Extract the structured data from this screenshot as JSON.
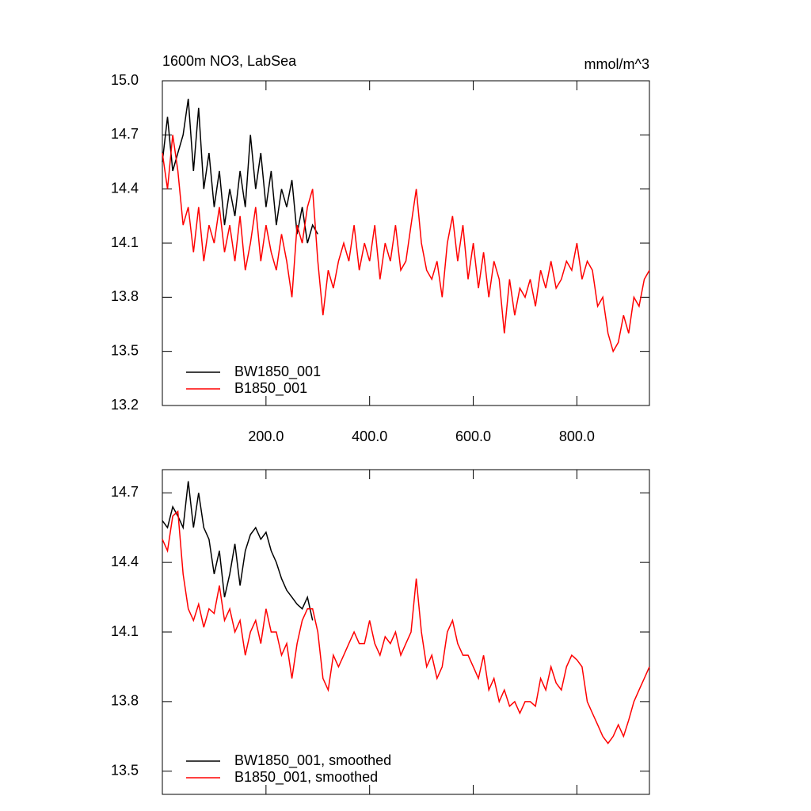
{
  "chart_data": [
    {
      "type": "line",
      "title": "1600m NO3, LabSea",
      "units": "mmol/m^3",
      "xlim": [
        0,
        940
      ],
      "ylim": [
        13.2,
        15.0
      ],
      "xticks": [
        {
          "value": 200,
          "label": "200.0"
        },
        {
          "value": 400,
          "label": "400.0"
        },
        {
          "value": 600,
          "label": "600.0"
        },
        {
          "value": 800,
          "label": "800.0"
        }
      ],
      "yticks": [
        {
          "value": 13.2,
          "label": "13.2"
        },
        13.5,
        13.8,
        14.1,
        14.4,
        14.7,
        {
          "value": 15,
          "label": "15.0"
        }
      ],
      "series": [
        {
          "name": "BW1850_001",
          "color": "#000000",
          "x": [
            0,
            10,
            20,
            30,
            40,
            50,
            60,
            70,
            80,
            90,
            100,
            110,
            120,
            130,
            140,
            150,
            160,
            170,
            180,
            190,
            200,
            210,
            220,
            230,
            240,
            250,
            260,
            270,
            280,
            290,
            300
          ],
          "values": [
            14.55,
            14.8,
            14.5,
            14.6,
            14.7,
            14.9,
            14.5,
            14.85,
            14.4,
            14.6,
            14.3,
            14.5,
            14.2,
            14.4,
            14.25,
            14.5,
            14.3,
            14.7,
            14.4,
            14.6,
            14.3,
            14.5,
            14.2,
            14.4,
            14.3,
            14.45,
            14.15,
            14.3,
            14.1,
            14.2,
            14.15
          ]
        },
        {
          "name": "B1850_001",
          "color": "#ff0000",
          "x": [
            0,
            10,
            20,
            30,
            40,
            50,
            60,
            70,
            80,
            90,
            100,
            110,
            120,
            130,
            140,
            150,
            160,
            170,
            180,
            190,
            200,
            210,
            220,
            230,
            240,
            250,
            260,
            270,
            280,
            290,
            300,
            310,
            320,
            330,
            340,
            350,
            360,
            370,
            380,
            390,
            400,
            410,
            420,
            430,
            440,
            450,
            460,
            470,
            480,
            490,
            500,
            510,
            520,
            530,
            540,
            550,
            560,
            570,
            580,
            590,
            600,
            610,
            620,
            630,
            640,
            650,
            660,
            670,
            680,
            690,
            700,
            710,
            720,
            730,
            740,
            750,
            760,
            770,
            780,
            790,
            800,
            810,
            820,
            830,
            840,
            850,
            860,
            870,
            880,
            890,
            900,
            910,
            920,
            930,
            940
          ],
          "values": [
            14.6,
            14.4,
            14.7,
            14.5,
            14.2,
            14.3,
            14.05,
            14.3,
            14.0,
            14.2,
            14.1,
            14.3,
            14.05,
            14.2,
            14.0,
            14.25,
            13.95,
            14.1,
            14.3,
            14.0,
            14.2,
            14.05,
            13.95,
            14.15,
            14.0,
            13.8,
            14.2,
            14.1,
            14.3,
            14.4,
            14.0,
            13.7,
            13.95,
            13.85,
            14.0,
            14.1,
            14.0,
            14.2,
            13.95,
            14.1,
            14.0,
            14.2,
            13.9,
            14.1,
            14.0,
            14.2,
            13.95,
            14.0,
            14.2,
            14.4,
            14.1,
            13.95,
            13.9,
            14.0,
            13.8,
            14.1,
            14.25,
            14.0,
            14.2,
            13.9,
            14.1,
            13.85,
            14.05,
            13.8,
            14.0,
            13.9,
            13.6,
            13.9,
            13.7,
            13.85,
            13.8,
            13.9,
            13.75,
            13.95,
            13.85,
            14.0,
            13.85,
            13.9,
            14.0,
            13.95,
            14.1,
            13.9,
            14.0,
            13.95,
            13.75,
            13.8,
            13.6,
            13.5,
            13.55,
            13.7,
            13.6,
            13.8,
            13.75,
            13.9,
            13.95
          ]
        }
      ]
    },
    {
      "type": "line",
      "xlim": [
        0,
        940
      ],
      "ylim": [
        13.4,
        14.8
      ],
      "yticks": [
        13.5,
        13.8,
        14.1,
        14.4,
        14.7
      ],
      "series": [
        {
          "name": "BW1850_001, smoothed",
          "color": "#000000",
          "x": [
            0,
            10,
            20,
            30,
            40,
            50,
            60,
            70,
            80,
            90,
            100,
            110,
            120,
            130,
            140,
            150,
            160,
            170,
            180,
            190,
            200,
            210,
            220,
            230,
            240,
            250,
            260,
            270,
            280,
            290
          ],
          "values": [
            14.58,
            14.55,
            14.64,
            14.6,
            14.55,
            14.75,
            14.55,
            14.7,
            14.55,
            14.5,
            14.35,
            14.45,
            14.25,
            14.35,
            14.48,
            14.3,
            14.45,
            14.52,
            14.55,
            14.5,
            14.53,
            14.45,
            14.4,
            14.33,
            14.28,
            14.25,
            14.22,
            14.2,
            14.25,
            14.15
          ]
        },
        {
          "name": "B1850_001, smoothed",
          "color": "#ff0000",
          "x": [
            0,
            10,
            20,
            30,
            40,
            50,
            60,
            70,
            80,
            90,
            100,
            110,
            120,
            130,
            140,
            150,
            160,
            170,
            180,
            190,
            200,
            210,
            220,
            230,
            240,
            250,
            260,
            270,
            280,
            290,
            300,
            310,
            320,
            330,
            340,
            350,
            360,
            370,
            380,
            390,
            400,
            410,
            420,
            430,
            440,
            450,
            460,
            470,
            480,
            490,
            500,
            510,
            520,
            530,
            540,
            550,
            560,
            570,
            580,
            590,
            600,
            610,
            620,
            630,
            640,
            650,
            660,
            670,
            680,
            690,
            700,
            710,
            720,
            730,
            740,
            750,
            760,
            770,
            780,
            790,
            800,
            810,
            820,
            830,
            840,
            850,
            860,
            870,
            880,
            890,
            900,
            910,
            920,
            930,
            940
          ],
          "values": [
            14.5,
            14.45,
            14.6,
            14.62,
            14.35,
            14.2,
            14.15,
            14.22,
            14.12,
            14.2,
            14.18,
            14.3,
            14.15,
            14.2,
            14.1,
            14.15,
            14.0,
            14.1,
            14.15,
            14.05,
            14.2,
            14.1,
            14.1,
            14.0,
            14.05,
            13.9,
            14.05,
            14.15,
            14.2,
            14.2,
            14.1,
            13.9,
            13.85,
            14.0,
            13.95,
            14.0,
            14.05,
            14.1,
            14.05,
            14.05,
            14.15,
            14.05,
            14.0,
            14.08,
            14.05,
            14.1,
            14.0,
            14.05,
            14.1,
            14.33,
            14.1,
            13.95,
            14.0,
            13.9,
            13.95,
            14.1,
            14.15,
            14.05,
            14.0,
            14.0,
            13.95,
            13.9,
            14.0,
            13.85,
            13.9,
            13.8,
            13.85,
            13.78,
            13.8,
            13.75,
            13.8,
            13.8,
            13.78,
            13.9,
            13.85,
            13.95,
            13.88,
            13.85,
            13.95,
            14.0,
            13.98,
            13.95,
            13.8,
            13.75,
            13.7,
            13.65,
            13.62,
            13.65,
            13.7,
            13.65,
            13.72,
            13.8,
            13.85,
            13.9,
            13.95
          ]
        }
      ]
    }
  ]
}
